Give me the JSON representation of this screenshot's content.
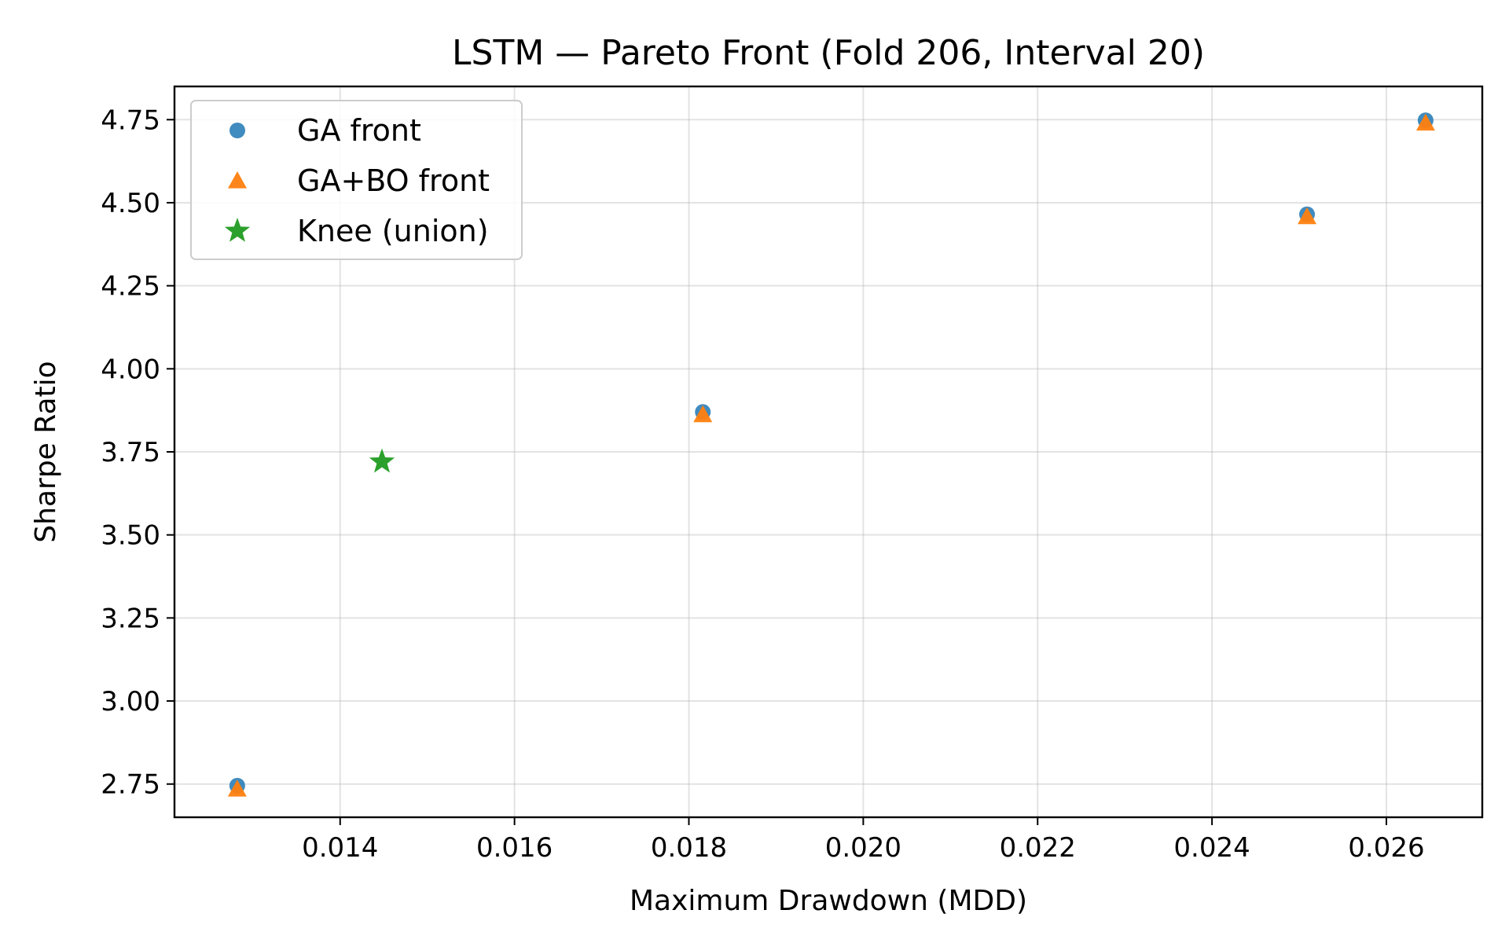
{
  "chart_data": {
    "type": "scatter",
    "title": "LSTM — Pareto Front (Fold 206, Interval 20)",
    "xlabel": "Maximum Drawdown (MDD)",
    "ylabel": "Sharpe Ratio",
    "xlim": [
      0.0121,
      0.0271
    ],
    "ylim": [
      2.65,
      4.85
    ],
    "xticks": [
      0.014,
      0.016,
      0.018,
      0.02,
      0.022,
      0.024,
      0.026
    ],
    "xtick_labels": [
      "0.014",
      "0.016",
      "0.018",
      "0.020",
      "0.022",
      "0.024",
      "0.026"
    ],
    "yticks": [
      2.75,
      3.0,
      3.25,
      3.5,
      3.75,
      4.0,
      4.25,
      4.5,
      4.75
    ],
    "ytick_labels": [
      "2.75",
      "3.00",
      "3.25",
      "3.50",
      "3.75",
      "4.00",
      "4.25",
      "4.50",
      "4.75"
    ],
    "grid": true,
    "legend_position": "top-left",
    "series": [
      {
        "name": "GA front",
        "marker": "circle",
        "color": "#1f77b4",
        "points": [
          [
            0.01282,
            2.745
          ],
          [
            0.01816,
            3.87
          ],
          [
            0.02509,
            4.465
          ],
          [
            0.02645,
            4.748
          ]
        ]
      },
      {
        "name": "GA+BO front",
        "marker": "triangle",
        "color": "#ff7f0e",
        "points": [
          [
            0.01282,
            2.735
          ],
          [
            0.01816,
            3.862
          ],
          [
            0.02509,
            4.458
          ],
          [
            0.02645,
            4.74
          ]
        ]
      },
      {
        "name": "Knee (union)",
        "marker": "star",
        "color": "#2ca02c",
        "points": [
          [
            0.01448,
            3.72
          ]
        ]
      }
    ]
  }
}
